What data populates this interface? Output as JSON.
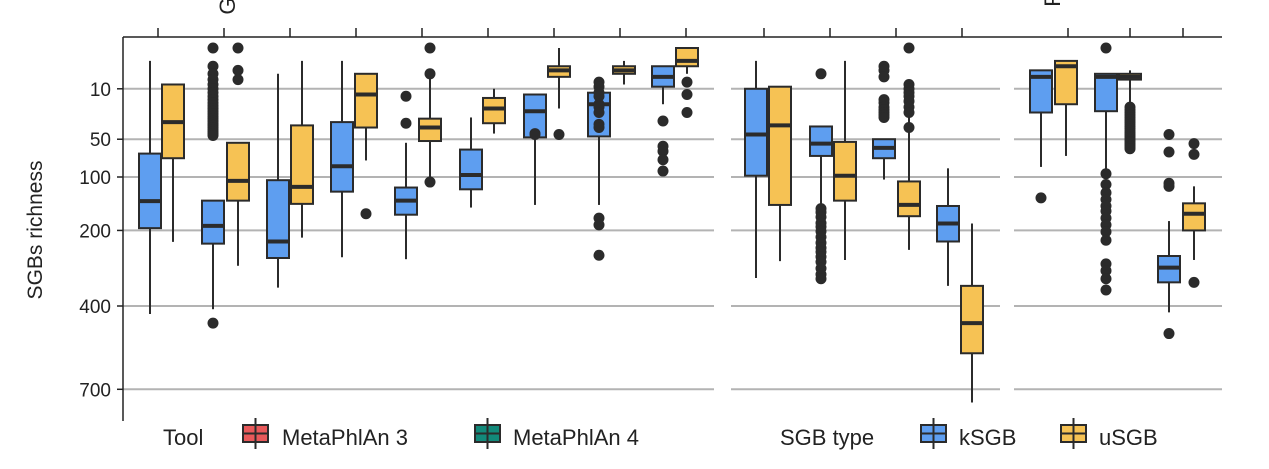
{
  "chart_data": {
    "type": "boxplot",
    "title": "",
    "ylabel": "SGBs richness",
    "y_scale": "sqrt-reversed",
    "y_ticks": [
      10,
      50,
      100,
      200,
      400,
      700
    ],
    "y_tick_labels": [
      "10",
      "50",
      "100",
      "200",
      "400",
      "700"
    ],
    "ylim": [
      0,
      780
    ],
    "facets": [
      {
        "id": "facet-1",
        "label": "G",
        "groups": [
          {
            "boxes": [
              {
                "series": "kSGB",
                "q1": 67,
                "median": 141,
                "q3": 195,
                "whisker_low": 1,
                "whisker_high": 425,
                "outliers": []
              },
              {
                "series": "uSGB",
                "q1": 8,
                "median": 33,
                "q3": 73,
                "whisker_low": 8,
                "whisker_high": 226,
                "outliers": []
              }
            ]
          },
          {
            "boxes": [
              {
                "series": "kSGB",
                "q1": 140,
                "median": 190,
                "q3": 230,
                "whisker_low": 140,
                "whisker_high": 410,
                "outliers": [
                  0,
                  2,
                  4,
                  6,
                  8,
                  10,
                  12,
                  14,
                  16,
                  18,
                  20,
                  22,
                  24,
                  26,
                  28,
                  30,
                  32,
                  34,
                  36,
                  38,
                  40,
                  42,
                  44,
                  46,
                  455
                ]
              },
              {
                "series": "uSGB",
                "q1": 54,
                "median": 106,
                "q3": 140,
                "whisker_low": 54,
                "whisker_high": 285,
                "outliers": [
                  0,
                  3,
                  6
                ]
              }
            ]
          },
          {
            "boxes": [
              {
                "series": "kSGB",
                "q1": 105,
                "median": 225,
                "q3": 265,
                "whisker_low": 4,
                "whisker_high": 345,
                "outliers": []
              },
              {
                "series": "uSGB",
                "q1": 36,
                "median": 116,
                "q3": 146,
                "whisker_low": 1,
                "whisker_high": 216,
                "outliers": []
              }
            ]
          },
          {
            "boxes": [
              {
                "series": "kSGB",
                "q1": 33,
                "median": 84,
                "q3": 124,
                "whisker_low": 1,
                "whisker_high": 263,
                "outliers": []
              },
              {
                "series": "uSGB",
                "q1": 4,
                "median": 13,
                "q3": 38,
                "whisker_low": 4,
                "whisker_high": 76,
                "outliers": [
                  165
                ]
              }
            ]
          },
          {
            "boxes": [
              {
                "series": "kSGB",
                "q1": 117,
                "median": 140,
                "q3": 167,
                "whisker_low": 54,
                "whisker_high": 268,
                "outliers": [
                  14,
                  34
                ]
              },
              {
                "series": "uSGB",
                "q1": 30,
                "median": 38,
                "q3": 52,
                "whisker_low": 3,
                "whisker_high": 103,
                "outliers": [
                  0,
                  4,
                  108
                ]
              }
            ]
          },
          {
            "boxes": [
              {
                "series": "kSGB",
                "q1": 62,
                "median": 97,
                "q3": 120,
                "whisker_low": 29,
                "whisker_high": 153,
                "outliers": []
              },
              {
                "series": "uSGB",
                "q1": 15,
                "median": 22,
                "q3": 34,
                "whisker_low": 10,
                "whisker_high": 44,
                "outliers": []
              }
            ]
          },
          {
            "boxes": [
              {
                "series": "kSGB",
                "q1": 13,
                "median": 24,
                "q3": 48,
                "whisker_low": 13,
                "whisker_high": 148,
                "outliers": [
                  44,
                  45
                ]
              },
              {
                "series": "uSGB",
                "q1": 2,
                "median": 3,
                "q3": 5,
                "whisker_low": 0,
                "whisker_high": 22,
                "outliers": [
                  45
                ]
              }
            ]
          },
          {
            "boxes": [
              {
                "series": "kSGB",
                "q1": 12,
                "median": 19,
                "q3": 47,
                "whisker_low": 12,
                "whisker_high": 148,
                "outliers": [
                  7,
                  9,
                  12,
                  14,
                  19,
                  21,
                  25,
                  35,
                  38,
                  174,
                  188,
                  258
                ]
              },
              {
                "series": "uSGB",
                "q1": 2,
                "median": 3,
                "q3": 4,
                "whisker_low": 1,
                "whisker_high": 8,
                "outliers": []
              }
            ]
          },
          {
            "boxes": [
              {
                "series": "kSGB",
                "q1": 2,
                "median": 5,
                "q3": 9,
                "whisker_low": 2,
                "whisker_high": 19,
                "outliers": [
                  32,
                  58,
                  64,
                  75,
                  91
                ]
              },
              {
                "series": "uSGB",
                "q1": 0,
                "median": 1,
                "q3": 2,
                "whisker_low": 0,
                "whisker_high": 4,
                "outliers": [
                  7,
                  13,
                  25
                ]
              }
            ]
          }
        ]
      },
      {
        "id": "facet-2",
        "label": "F",
        "groups": [
          {
            "boxes": [
              {
                "series": "kSGB",
                "q1": 10,
                "median": 45,
                "q3": 98,
                "whisker_low": 1,
                "whisker_high": 318,
                "outliers": []
              },
              {
                "series": "uSGB",
                "q1": 9,
                "median": 36,
                "q3": 148,
                "whisker_low": 9,
                "whisker_high": 273,
                "outliers": []
              }
            ]
          },
          {
            "boxes": [
              {
                "series": "kSGB",
                "q1": 37,
                "median": 55,
                "q3": 70,
                "whisker_low": 37,
                "whisker_high": 148,
                "outliers": [
                  4,
                  155,
                  162,
                  172,
                  184,
                  192,
                  202,
                  215,
                  228,
                  240,
                  250,
                  262,
                  275,
                  292,
                  308,
                  320
                ]
              },
              {
                "series": "uSGB",
                "q1": 53,
                "median": 98,
                "q3": 140,
                "whisker_low": 1,
                "whisker_high": 270,
                "outliers": []
              }
            ]
          },
          {
            "boxes": [
              {
                "series": "kSGB",
                "q1": 50,
                "median": 60,
                "q3": 73,
                "whisker_low": 50,
                "whisker_high": 104,
                "outliers": [
                  2,
                  3,
                  5,
                  16,
                  18,
                  21,
                  23,
                  25,
                  27,
                  29
                ]
              },
              {
                "series": "uSGB",
                "q1": 107,
                "median": 148,
                "q3": 170,
                "whisker_low": 10,
                "whisker_high": 245,
                "outliers": [
                  0,
                  8,
                  10,
                  12,
                  14,
                  17,
                  21,
                  25,
                  38
                ]
              }
            ]
          },
          {
            "boxes": [
              {
                "series": "kSGB",
                "q1": 150,
                "median": 185,
                "q3": 225,
                "whisker_low": 87,
                "whisker_high": 340,
                "outliers": []
              },
              {
                "series": "uSGB",
                "q1": 340,
                "median": 455,
                "q3": 560,
                "whisker_low": 185,
                "whisker_high": 755,
                "outliers": []
              }
            ]
          },
          {
            "boxes": [
              {
                "series": "kSGB",
                "q1": 3,
                "median": 5,
                "q3": 25,
                "whisker_low": 3,
                "whisker_high": 85,
                "outliers": [
                  135
                ]
              },
              {
                "series": "uSGB",
                "q1": 1,
                "median": 2,
                "q3": 19,
                "whisker_low": 1,
                "whisker_high": 70,
                "outliers": []
              }
            ]
          },
          {
            "boxes": [
              {
                "series": "kSGB",
                "q1": 4,
                "median": 5,
                "q3": 24,
                "whisker_low": 4,
                "whisker_high": 90,
                "outliers": [
                  0,
                  95,
                  112,
                  126,
                  138,
                  150,
                  160,
                  174,
                  188,
                  203,
                  222,
                  280,
                  298,
                  320,
                  352
                ]
              },
              {
                "series": "uSGB",
                "q1": 4,
                "median": 5,
                "q3": 6,
                "whisker_low": 3,
                "whisker_high": 19,
                "outliers": [
                  21,
                  23,
                  25,
                  27,
                  29,
                  31,
                  33,
                  35,
                  37,
                  39,
                  41,
                  43,
                  45,
                  47,
                  49,
                  51,
                  53,
                  55,
                  57,
                  59,
                  61
                ]
              },
              {
                "series": "kSGB",
                "q1": 260,
                "median": 290,
                "q3": 330,
                "whisker_low": 180,
                "whisker_high": 420,
                "outliers": [
                  45,
                  65,
                  110,
                  115,
                  490
                ]
              },
              {
                "series": "uSGB",
                "q1": 145,
                "median": 165,
                "q3": 200,
                "whisker_low": 115,
                "whisker_high": 270,
                "outliers": [
                  55,
                  68,
                  330
                ]
              }
            ]
          }
        ]
      }
    ],
    "legends": {
      "tool": {
        "title": "Tool",
        "entries": [
          {
            "label": "MetaPhlAn 3",
            "color": "#e8595a"
          },
          {
            "label": "MetaPhlAn 4",
            "color": "#12897a"
          }
        ]
      },
      "sgb_type": {
        "title": "SGB type",
        "entries": [
          {
            "label": "kSGB",
            "color": "#5e9ef0"
          },
          {
            "label": "uSGB",
            "color": "#f6c254"
          }
        ]
      }
    },
    "colors": {
      "kSGB": "#5e9ef0",
      "uSGB": "#f6c254",
      "outline": "#2b2b2b",
      "grid": "#b3b3b3"
    }
  }
}
